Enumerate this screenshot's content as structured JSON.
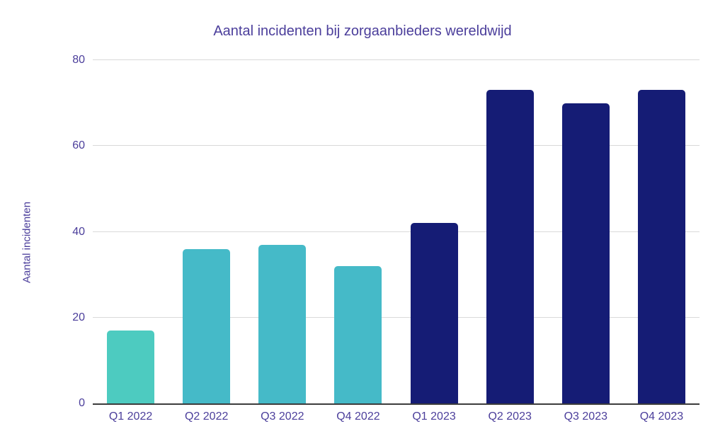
{
  "chart_data": {
    "type": "bar",
    "title": "Aantal incidenten bij zorgaanbieders wereldwijd",
    "xlabel": "",
    "ylabel": "Aantal incidenten",
    "categories": [
      "Q1 2022",
      "Q2 2022",
      "Q3 2022",
      "Q4 2022",
      "Q1 2023",
      "Q2 2023",
      "Q3 2023",
      "Q4 2023"
    ],
    "values": [
      17,
      36,
      37,
      32,
      42,
      73,
      70,
      73
    ],
    "bar_colors": [
      "#4DCBC0",
      "#45BAC8",
      "#45BAC8",
      "#45BAC8",
      "#151C75",
      "#151C75",
      "#151C75",
      "#151C75"
    ],
    "ylim": [
      0,
      80
    ],
    "yticks": [
      0,
      20,
      40,
      60,
      80
    ],
    "grid": "horizontal",
    "legend": "none"
  },
  "colors": {
    "background": "#FFFFFF",
    "title_text": "#4B3E9B",
    "axis_text": "#4B3E9B",
    "gridline": "#D9D9D9",
    "axis_line": "#3C3C3C",
    "teal_light": "#4DCBC0",
    "teal": "#45BAC8",
    "navy": "#151C75"
  }
}
